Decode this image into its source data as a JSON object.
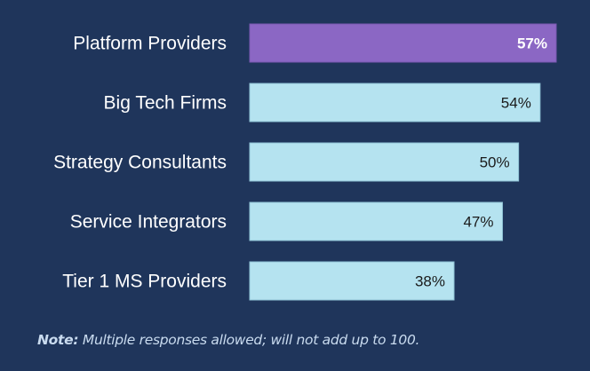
{
  "chart_data": {
    "type": "bar",
    "orientation": "horizontal",
    "categories": [
      "Platform Providers",
      "Big Tech Firms",
      "Strategy Consultants",
      "Service Integrators",
      "Tier 1 MS Providers"
    ],
    "values": [
      57,
      54,
      50,
      47,
      38
    ],
    "data_labels": [
      "57%",
      "54%",
      "50%",
      "47%",
      "38%"
    ],
    "highlight_index": 0,
    "colors": {
      "highlight": "#8b67c4",
      "default": "#b5e3f0",
      "background": "#1f355b",
      "label_text": "#ffffff",
      "highlight_value_text": "#ffffff",
      "default_value_text": "#1a1a1a"
    },
    "grid": false,
    "xlim": [
      0,
      57
    ]
  },
  "note": {
    "label": "Note:",
    "text": " Multiple responses allowed; will not add up to 100."
  }
}
